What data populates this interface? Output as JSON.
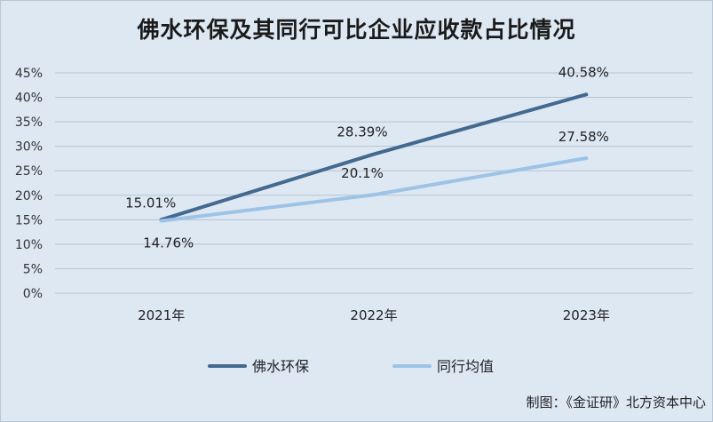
{
  "chart_data": {
    "type": "line",
    "title": "佛水环保及其同行可比企业应收款占比情况",
    "categories": [
      "2021年",
      "2022年",
      "2023年"
    ],
    "series": [
      {
        "name": "佛水环保",
        "values": [
          15.01,
          28.39,
          40.58
        ],
        "labels": [
          "15.01%",
          "28.39%",
          "40.58%"
        ],
        "color": "#44698f"
      },
      {
        "name": "同行均值",
        "values": [
          14.76,
          20.1,
          27.58
        ],
        "labels": [
          "14.76%",
          "20.1%",
          "27.58%"
        ],
        "color": "#9dc3e6"
      }
    ],
    "yticks": [
      "0%",
      "5%",
      "10%",
      "15%",
      "20%",
      "25%",
      "30%",
      "35%",
      "40%",
      "45%"
    ],
    "ylim": [
      0,
      45
    ],
    "grid": true,
    "legend": "bottom"
  },
  "credit": "制图：《金证研》北方资本中心"
}
